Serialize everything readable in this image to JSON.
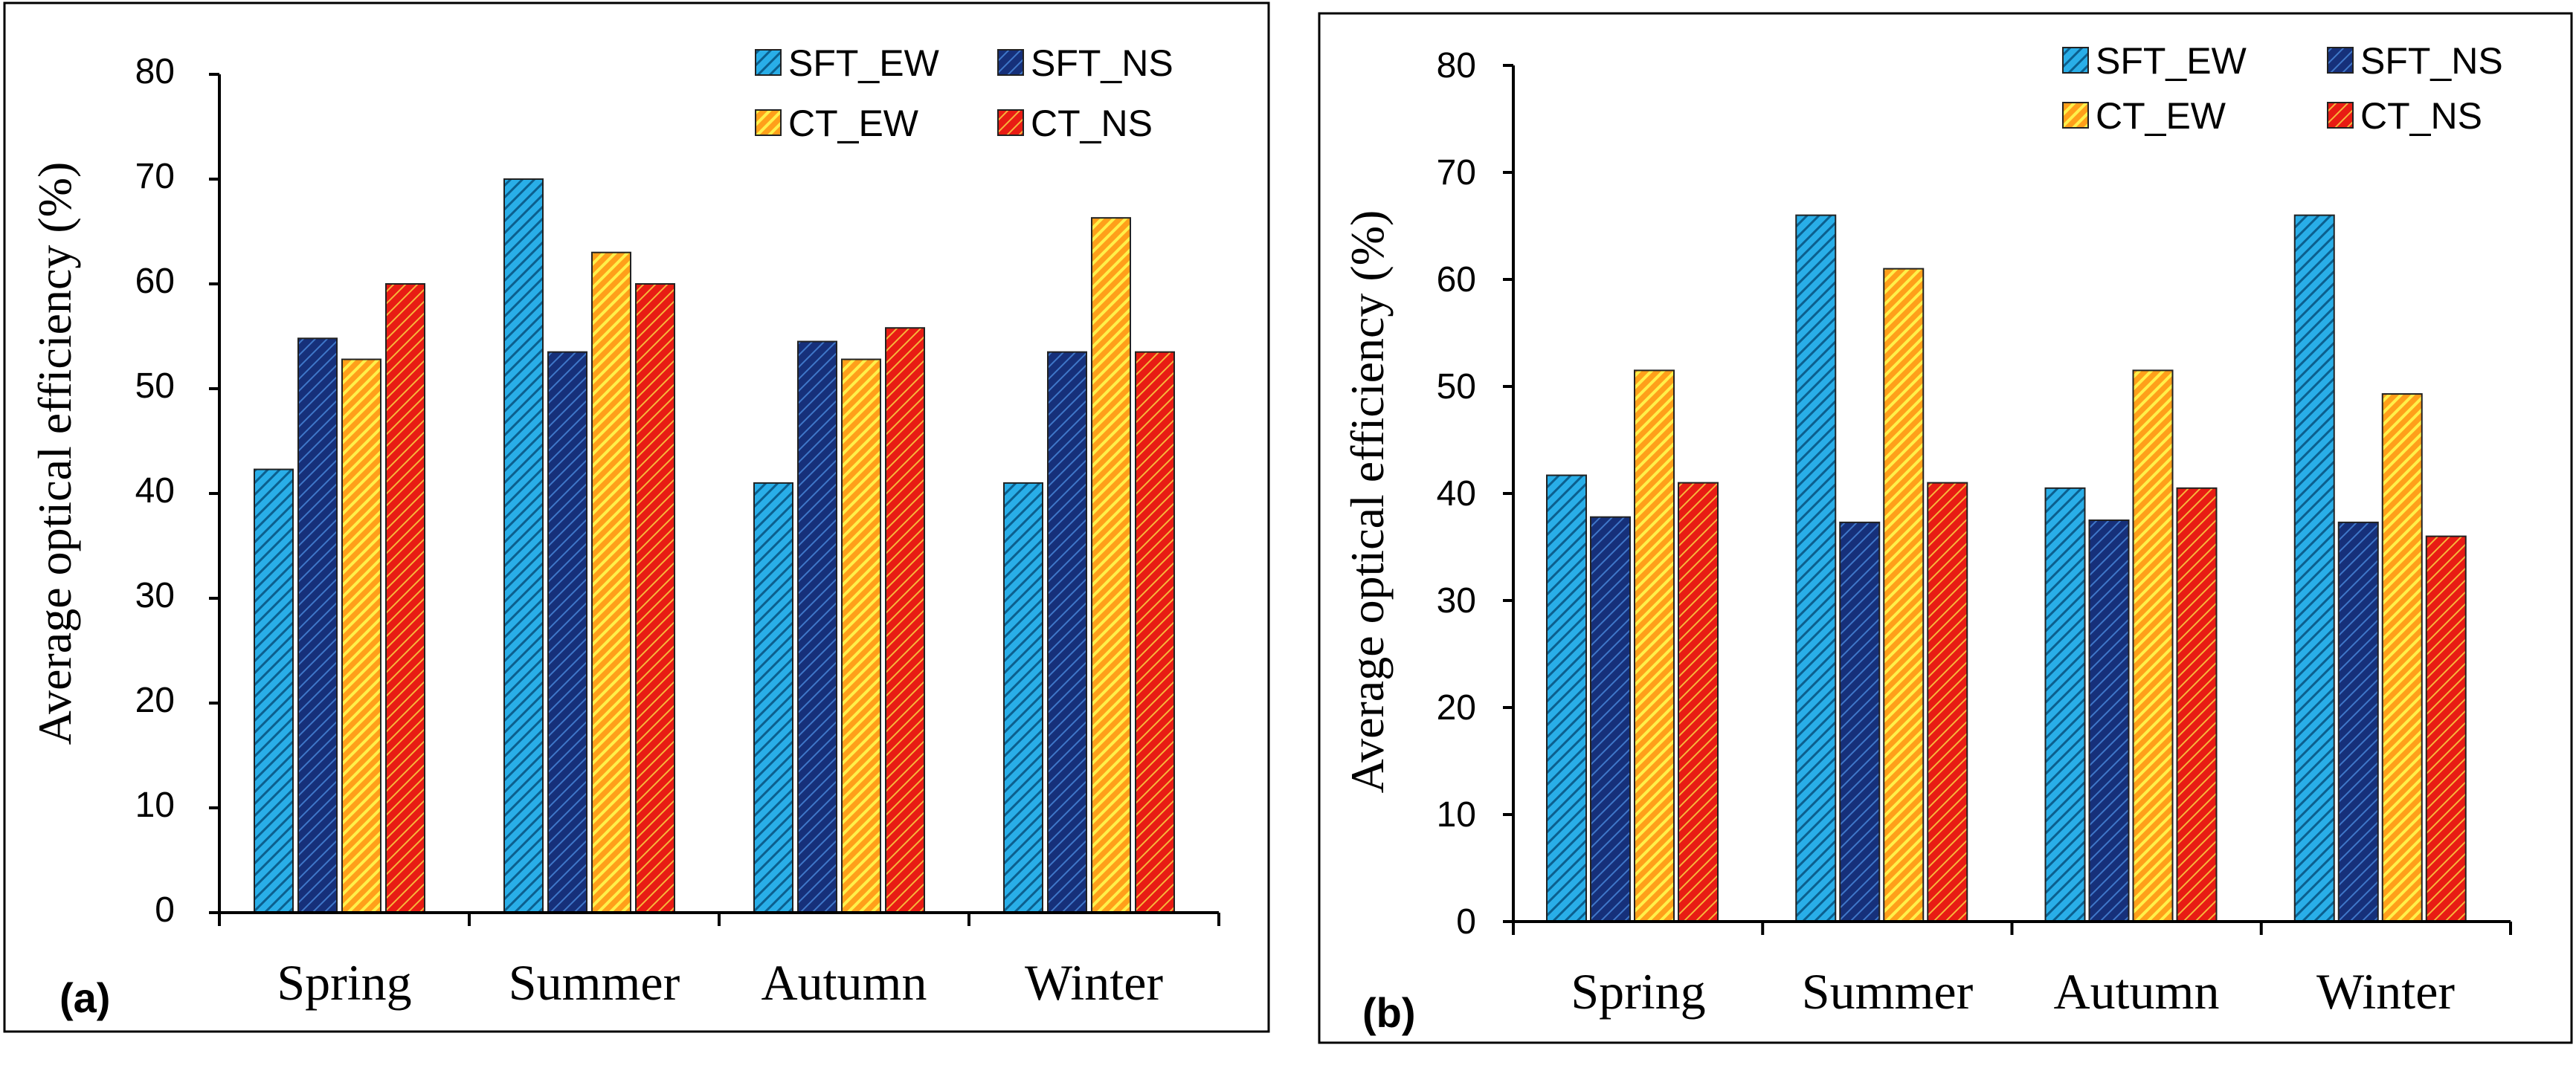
{
  "figure": {
    "colors": {
      "SFT_EW": "#29aee8",
      "SFT_NS": "#16307a",
      "CT_EW": "#ff9f1a",
      "CT_NS": "#e81c14"
    }
  },
  "chart_data": [
    {
      "type": "bar",
      "panel_label": "(a)",
      "categories": [
        "Spring",
        "Summer",
        "Autumn",
        "Winter"
      ],
      "series": [
        {
          "name": "SFT_EW",
          "values": [
            42.3,
            70,
            41,
            41
          ]
        },
        {
          "name": "SFT_NS",
          "values": [
            54.8,
            53.5,
            54.5,
            53.5
          ]
        },
        {
          "name": "CT_EW",
          "values": [
            52.8,
            63,
            52.8,
            66.3
          ]
        },
        {
          "name": "CT_NS",
          "values": [
            60,
            60,
            55.8,
            53.5
          ]
        }
      ],
      "title": "",
      "xlabel": "",
      "ylabel": "Average optical efficiency (%)",
      "ylim": [
        0,
        80
      ],
      "yticks": [
        "0",
        "10",
        "20",
        "30",
        "40",
        "50",
        "60",
        "70",
        "80"
      ],
      "legend": "top-right"
    },
    {
      "type": "bar",
      "panel_label": "(b)",
      "categories": [
        "Spring",
        "Summer",
        "Autumn",
        "Winter"
      ],
      "series": [
        {
          "name": "SFT_EW",
          "values": [
            41.7,
            66,
            40.5,
            66
          ]
        },
        {
          "name": "SFT_NS",
          "values": [
            37.8,
            37.3,
            37.5,
            37.3
          ]
        },
        {
          "name": "CT_EW",
          "values": [
            51.5,
            61,
            51.5,
            49.3
          ]
        },
        {
          "name": "CT_NS",
          "values": [
            41,
            41,
            40.5,
            36
          ]
        }
      ],
      "title": "",
      "xlabel": "",
      "ylabel": "Average optical efficiency (%)",
      "ylim": [
        0,
        80
      ],
      "yticks": [
        "0",
        "10",
        "20",
        "30",
        "40",
        "50",
        "60",
        "70",
        "80"
      ],
      "legend": "top-right"
    }
  ]
}
